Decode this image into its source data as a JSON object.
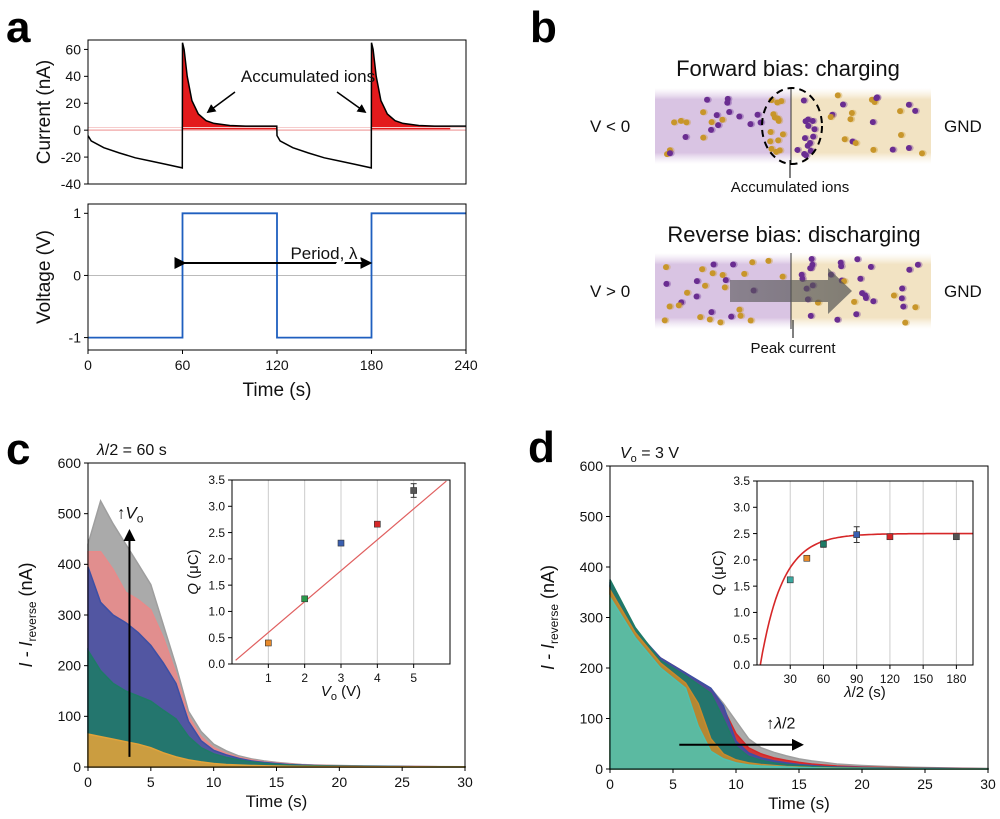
{
  "panels": {
    "a": {
      "letter": "a"
    },
    "b": {
      "letter": "b"
    },
    "c": {
      "letter": "c"
    },
    "d": {
      "letter": "d"
    }
  },
  "chart_data": [
    {
      "id": "a-top",
      "type": "line",
      "ylabel": "Current (nA)",
      "xlim": [
        0,
        240
      ],
      "ylim": [
        -40,
        67
      ],
      "yticks": [
        -40,
        -20,
        0,
        20,
        40,
        60
      ],
      "annotation": "Accumulated ions",
      "colors": {
        "line": "#000000",
        "fill": "#e31a1c",
        "zero": "#f3b3b3"
      },
      "series": [
        {
          "x": [
            0,
            2,
            10,
            20,
            30,
            40,
            50,
            59.9,
            60,
            61,
            63,
            66,
            70,
            75,
            80,
            90,
            100,
            110,
            119.9,
            120,
            122,
            130,
            140,
            150,
            160,
            170,
            179.9,
            180,
            181,
            183,
            186,
            190,
            195,
            200,
            210,
            220,
            230,
            240
          ],
          "y": [
            -4,
            -8,
            -13,
            -17,
            -20.5,
            -23,
            -25.5,
            -28,
            65,
            60,
            40,
            22,
            12,
            7,
            5,
            3.5,
            3,
            3,
            3,
            -4,
            -8,
            -13,
            -17,
            -20.5,
            -23,
            -25.5,
            -28,
            65,
            60,
            40,
            22,
            12,
            7,
            5,
            3.5,
            3,
            3,
            3
          ]
        }
      ]
    },
    {
      "id": "a-bottom",
      "type": "line",
      "xlabel": "Time (s)",
      "ylabel": "Voltage (V)",
      "xlim": [
        0,
        240
      ],
      "ylim": [
        -1.2,
        1.15
      ],
      "xticks": [
        0,
        60,
        120,
        180,
        240
      ],
      "yticks": [
        -1,
        0,
        1
      ],
      "annotation": "Period, λ",
      "colors": {
        "line": "#1f5fbf"
      },
      "series": [
        {
          "x": [
            0,
            60,
            60,
            120,
            120,
            180,
            180,
            240
          ],
          "y": [
            -1,
            -1,
            1,
            1,
            -1,
            -1,
            1,
            1
          ]
        }
      ]
    },
    {
      "id": "c-main",
      "type": "area",
      "title": "λ/2 = 60 s",
      "xlabel": "Time (s)",
      "ylabel": "I - Ireverse (nA)",
      "xlim": [
        0,
        30
      ],
      "ylim": [
        0,
        600
      ],
      "xticks": [
        0,
        5,
        10,
        15,
        20,
        25,
        30
      ],
      "yticks": [
        0,
        100,
        200,
        300,
        400,
        500,
        600
      ],
      "annotation": "↑Vo",
      "series": [
        {
          "color": "#9e9e9e",
          "x": [
            0,
            1,
            2,
            3,
            4,
            5,
            6,
            7,
            8,
            9,
            10,
            11,
            12,
            13,
            14,
            15,
            16,
            17,
            18,
            20,
            22,
            24,
            26,
            28,
            30
          ],
          "y": [
            440,
            525,
            480,
            440,
            400,
            360,
            280,
            200,
            110,
            70,
            45,
            32,
            22,
            16,
            12,
            9,
            7,
            5,
            4,
            3,
            2,
            1.5,
            1,
            0.7,
            0.5
          ]
        },
        {
          "color": "#e88a8a",
          "x": [
            0,
            1,
            2,
            3,
            4,
            5,
            6,
            7,
            8,
            9,
            10,
            11,
            12,
            13,
            14,
            15,
            16,
            17,
            18,
            20,
            22,
            24,
            26,
            28,
            30
          ],
          "y": [
            425,
            425,
            390,
            345,
            330,
            310,
            255,
            185,
            100,
            60,
            38,
            27,
            19,
            14,
            10,
            8,
            6,
            4.5,
            3.5,
            2.5,
            1.8,
            1.3,
            0.9,
            0.6,
            0.4
          ]
        },
        {
          "color": "#3d4fa5",
          "x": [
            0,
            1,
            2,
            3,
            4,
            5,
            6,
            7,
            8,
            9,
            10,
            11,
            12,
            13,
            14,
            15,
            16,
            17,
            18,
            20,
            22,
            24,
            26,
            28,
            30
          ],
          "y": [
            395,
            325,
            300,
            285,
            265,
            240,
            205,
            165,
            90,
            52,
            33,
            24,
            17,
            12,
            9,
            7,
            5,
            4,
            3,
            2,
            1.5,
            1.1,
            0.8,
            0.5,
            0.3
          ]
        },
        {
          "color": "#1e7b66",
          "x": [
            0,
            1,
            2,
            3,
            4,
            5,
            6,
            7,
            8,
            9,
            10,
            11,
            12,
            13,
            14,
            15,
            16,
            17,
            18,
            20,
            22,
            24,
            26,
            28,
            30
          ],
          "y": [
            230,
            190,
            165,
            150,
            140,
            130,
            112,
            95,
            60,
            38,
            26,
            19,
            14,
            10,
            7.5,
            5.5,
            4,
            3,
            2.5,
            1.8,
            1.2,
            0.9,
            0.6,
            0.4,
            0.3
          ]
        },
        {
          "color": "#e2a33a",
          "x": [
            0,
            1,
            2,
            3,
            4,
            5,
            6,
            7,
            8,
            9,
            10,
            11,
            12,
            13,
            14,
            15,
            16,
            17,
            18,
            20,
            22,
            24,
            26,
            28,
            30
          ],
          "y": [
            65,
            60,
            55,
            50,
            45,
            38,
            28,
            20,
            14,
            10,
            7,
            5,
            4,
            3,
            2.5,
            2,
            1.5,
            1.2,
            1,
            0.8,
            0.6,
            0.4,
            0.3,
            0.2,
            0.1
          ]
        }
      ]
    },
    {
      "id": "c-inset",
      "type": "scatter",
      "xlabel": "Vo (V)",
      "ylabel": "Q (μC)",
      "xlim": [
        0,
        6
      ],
      "ylim": [
        0,
        3.5
      ],
      "xticks": [
        1,
        2,
        3,
        4,
        5
      ],
      "yticks": [
        0.0,
        0.5,
        1.0,
        1.5,
        2.0,
        2.5,
        3.0,
        3.5
      ],
      "grid": "vertical",
      "fit": {
        "x": [
          0.1,
          5.9
        ],
        "y": [
          0.07,
          3.48
        ],
        "color": "#e06060"
      },
      "points": [
        {
          "x": 1,
          "y": 0.4,
          "err": 0.03,
          "color": "#e88a2a"
        },
        {
          "x": 2,
          "y": 1.24,
          "err": 0.04,
          "color": "#2a9a4a"
        },
        {
          "x": 3,
          "y": 2.3,
          "err": 0.04,
          "color": "#3a5fb0"
        },
        {
          "x": 4,
          "y": 2.66,
          "err": 0.04,
          "color": "#d62728"
        },
        {
          "x": 5,
          "y": 3.3,
          "err": 0.13,
          "color": "#555555"
        }
      ]
    },
    {
      "id": "d-main",
      "type": "area",
      "title": "Vo = 3 V",
      "xlabel": "Time (s)",
      "ylabel": "I - Ireverse (nA)",
      "xlim": [
        0,
        30
      ],
      "ylim": [
        0,
        600
      ],
      "xticks": [
        0,
        5,
        10,
        15,
        20,
        25,
        30
      ],
      "yticks": [
        0,
        100,
        200,
        300,
        400,
        500,
        600
      ],
      "annotation": "↑λ/2",
      "series": [
        {
          "color": "#9e9e9e",
          "x": [
            0,
            2,
            4,
            6,
            8,
            9,
            10,
            11,
            12,
            13,
            14,
            15,
            16,
            17,
            18,
            20,
            22,
            24,
            26,
            28,
            30
          ],
          "y": [
            360,
            270,
            220,
            190,
            160,
            130,
            95,
            60,
            42,
            33,
            26,
            20,
            16,
            13,
            10,
            7,
            5,
            3.5,
            2.5,
            1.5,
            1
          ]
        },
        {
          "color": "#d62728",
          "x": [
            0,
            2,
            4,
            6,
            8,
            9,
            10,
            11,
            12,
            13,
            14,
            15,
            16,
            17,
            18,
            20,
            22,
            24,
            26,
            28,
            30
          ],
          "y": [
            365,
            270,
            220,
            190,
            155,
            120,
            70,
            42,
            30,
            22,
            17,
            13,
            10,
            8,
            6,
            4,
            3,
            2,
            1.5,
            1,
            0.6
          ]
        },
        {
          "color": "#3d4fa5",
          "x": [
            0,
            2,
            4,
            6,
            8,
            9,
            10,
            11,
            12,
            13,
            14,
            15,
            16,
            17,
            18,
            20,
            22,
            24,
            26,
            28,
            30
          ],
          "y": [
            370,
            275,
            220,
            190,
            160,
            125,
            55,
            32,
            22,
            16,
            12,
            9,
            7,
            5,
            4,
            3,
            2,
            1.5,
            1,
            0.7,
            0.5
          ]
        },
        {
          "color": "#1e7b66",
          "x": [
            0,
            2,
            4,
            6,
            8,
            9,
            10,
            11,
            12,
            13,
            14,
            15,
            16,
            17,
            18,
            20,
            22,
            24,
            26,
            28,
            30
          ],
          "y": [
            375,
            280,
            215,
            185,
            150,
            100,
            45,
            25,
            17,
            12,
            9,
            7,
            5,
            4,
            3,
            2,
            1.5,
            1,
            0.7,
            0.5,
            0.3
          ]
        },
        {
          "color": "#c98a2a",
          "x": [
            0,
            2,
            4,
            6,
            7,
            8,
            9,
            10,
            11,
            12,
            13,
            14,
            15,
            16,
            17,
            18,
            20,
            22,
            24,
            26,
            28,
            30
          ],
          "y": [
            355,
            270,
            210,
            170,
            130,
            60,
            30,
            18,
            12,
            9,
            7,
            5,
            4,
            3,
            2.5,
            2,
            1.5,
            1,
            0.7,
            0.5,
            0.3,
            0.2
          ]
        },
        {
          "color": "#4fc1b0",
          "x": [
            0,
            2,
            4,
            6,
            7,
            8,
            9,
            10,
            11,
            12,
            13,
            14,
            15,
            16,
            17,
            18,
            20,
            22,
            24,
            26,
            28,
            30
          ],
          "y": [
            340,
            260,
            200,
            160,
            85,
            35,
            20,
            12,
            8,
            6,
            5,
            4,
            3,
            2.5,
            2,
            1.5,
            1,
            0.7,
            0.5,
            0.3,
            0.2,
            0.1
          ]
        }
      ]
    },
    {
      "id": "d-inset",
      "type": "scatter",
      "xlabel": "λ/2 (s)",
      "ylabel": "Q (μC)",
      "xlim": [
        0,
        195
      ],
      "ylim": [
        0,
        3.5
      ],
      "xticks": [
        30,
        60,
        90,
        120,
        150,
        180
      ],
      "yticks": [
        0.0,
        0.5,
        1.0,
        1.5,
        2.0,
        2.5,
        3.0,
        3.5
      ],
      "grid": "vertical",
      "fit": {
        "type": "exp",
        "ymax": 2.5,
        "tau": 20,
        "x0": 3,
        "color": "#d62728"
      },
      "points": [
        {
          "x": 30,
          "y": 1.62,
          "err": 0.05,
          "color": "#3aa8a0"
        },
        {
          "x": 45,
          "y": 2.03,
          "err": 0.04,
          "color": "#e88a2a"
        },
        {
          "x": 60,
          "y": 2.3,
          "err": 0.06,
          "color": "#1e7b66"
        },
        {
          "x": 90,
          "y": 2.48,
          "err": 0.15,
          "color": "#3a5fb0"
        },
        {
          "x": 120,
          "y": 2.44,
          "err": 0.04,
          "color": "#d62728"
        },
        {
          "x": 180,
          "y": 2.44,
          "err": 0.04,
          "color": "#555555"
        }
      ]
    }
  ],
  "diagram": {
    "forward_title": "Forward bias: charging",
    "reverse_title": "Reverse bias: discharging",
    "left_forward": "V < 0",
    "left_reverse": "V > 0",
    "right_label": "GND",
    "accumulated_label": "Accumulated ions",
    "peak_label": "Peak current",
    "colors": {
      "left": "#d9c4e3",
      "right": "#f2e3c3",
      "purple_ion": "#6a2d91",
      "gold_ion": "#c8962a"
    }
  }
}
